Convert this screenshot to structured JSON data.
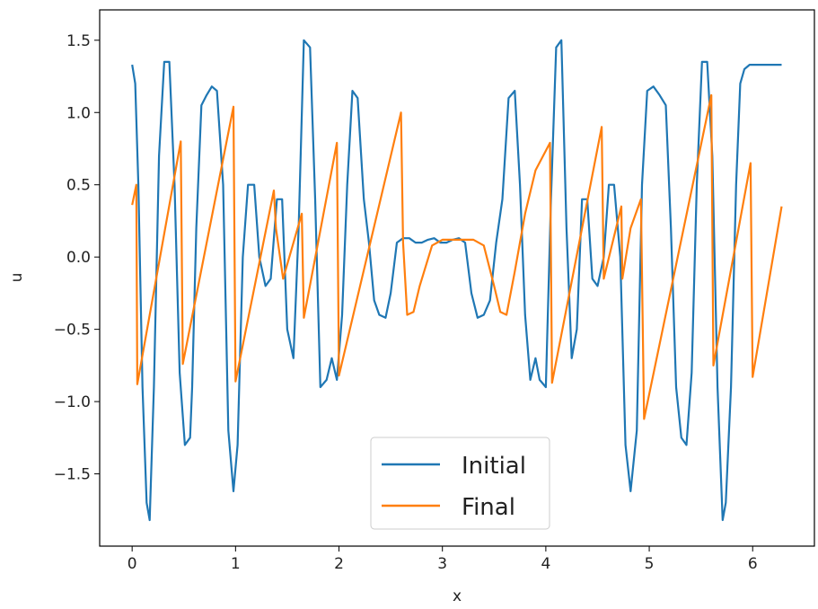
{
  "chart_data": {
    "type": "line",
    "title": "",
    "xlabel": "x",
    "ylabel": "u",
    "xlim": [
      -0.314,
      6.597
    ],
    "ylim": [
      -2.0,
      1.71
    ],
    "xticks": [
      0,
      1,
      2,
      3,
      4,
      5,
      6
    ],
    "xtick_labels": [
      "0",
      "1",
      "2",
      "3",
      "4",
      "5",
      "6"
    ],
    "yticks": [
      -1.5,
      -1.0,
      -0.5,
      0.0,
      0.5,
      1.0,
      1.5
    ],
    "ytick_labels": [
      "−1.5",
      "−1.0",
      "−0.5",
      "0.0",
      "0.5",
      "1.0",
      "1.5"
    ],
    "grid": false,
    "legend_position": "bottom-center",
    "series": [
      {
        "name": "Initial",
        "color": "#1f77b4",
        "x": [
          0,
          0.03,
          0.06,
          0.1,
          0.14,
          0.17,
          0.21,
          0.26,
          0.31,
          0.36,
          0.41,
          0.46,
          0.51,
          0.56,
          0.58,
          0.62,
          0.67,
          0.72,
          0.77,
          0.82,
          0.88,
          0.93,
          0.98,
          1.02,
          1.07,
          1.12,
          1.18,
          1.23,
          1.29,
          1.34,
          1.4,
          1.45,
          1.5,
          1.56,
          1.61,
          1.66,
          1.72,
          1.77,
          1.82,
          1.88,
          1.93,
          1.98,
          2.03,
          2.08,
          2.13,
          2.18,
          2.24,
          2.29,
          2.34,
          2.39,
          2.45,
          2.5,
          2.56,
          2.62,
          2.68,
          2.74,
          2.8,
          2.86,
          2.92,
          2.98,
          3.04,
          3.1,
          3.16,
          3.22,
          3.28,
          3.34,
          3.4,
          3.46,
          3.52,
          3.58,
          3.64,
          3.7,
          3.75,
          3.8,
          3.85,
          3.9,
          3.94,
          4.0,
          4.05,
          4.1,
          4.15,
          4.2,
          4.25,
          4.3,
          4.35,
          4.4,
          4.45,
          4.5,
          4.56,
          4.61,
          4.66,
          4.72,
          4.77,
          4.82,
          4.88,
          4.93,
          4.98,
          5.04,
          5.1,
          5.16,
          5.21,
          5.26,
          5.31,
          5.36,
          5.41,
          5.46,
          5.51,
          5.56,
          5.61,
          5.66,
          5.71,
          5.74,
          5.79,
          5.84,
          5.88,
          5.92,
          5.97,
          6.02,
          6.06,
          6.1,
          6.14,
          6.18,
          6.22,
          6.25,
          6.28
        ],
        "y": [
          1.33,
          1.2,
          0.5,
          -0.9,
          -1.7,
          -1.82,
          -0.9,
          0.7,
          1.35,
          1.35,
          0.5,
          -0.8,
          -1.3,
          -1.25,
          -0.9,
          0.2,
          1.05,
          1.12,
          1.18,
          1.15,
          0.5,
          -1.2,
          -1.62,
          -1.3,
          0.0,
          0.5,
          0.5,
          0.0,
          -0.2,
          -0.15,
          0.4,
          0.4,
          -0.5,
          -0.7,
          0.2,
          1.5,
          1.45,
          0.4,
          -0.9,
          -0.85,
          -0.7,
          -0.85,
          -0.4,
          0.5,
          1.15,
          1.1,
          0.4,
          0.1,
          -0.3,
          -0.4,
          -0.42,
          -0.25,
          0.1,
          0.13,
          0.13,
          0.1,
          0.1,
          0.12,
          0.13,
          0.1,
          0.1,
          0.12,
          0.13,
          0.1,
          -0.25,
          -0.42,
          -0.4,
          -0.3,
          0.1,
          0.4,
          1.1,
          1.15,
          0.5,
          -0.4,
          -0.85,
          -0.7,
          -0.85,
          -0.9,
          0.4,
          1.45,
          1.5,
          0.2,
          -0.7,
          -0.5,
          0.4,
          0.4,
          -0.15,
          -0.2,
          0.0,
          0.5,
          0.5,
          0.0,
          -1.3,
          -1.62,
          -1.2,
          0.5,
          1.15,
          1.18,
          1.12,
          1.05,
          0.2,
          -0.9,
          -1.25,
          -1.3,
          -0.8,
          0.5,
          1.35,
          1.35,
          0.7,
          -0.9,
          -1.82,
          -1.7,
          -0.9,
          0.5,
          1.2,
          1.3,
          1.33,
          1.33,
          1.33,
          1.33,
          1.33,
          1.33,
          1.33,
          1.33,
          1.33
        ]
      },
      {
        "name": "Final",
        "color": "#ff7f0e",
        "x": [
          0,
          0.04,
          0.05,
          0.07,
          0.47,
          0.49,
          0.98,
          1.0,
          1.37,
          1.39,
          1.46,
          1.64,
          1.66,
          1.98,
          2.0,
          2.6,
          2.62,
          2.66,
          2.72,
          2.78,
          2.9,
          3.0,
          3.1,
          3.2,
          3.3,
          3.4,
          3.5,
          3.56,
          3.62,
          3.7,
          3.8,
          3.9,
          4.04,
          4.06,
          4.54,
          4.56,
          4.73,
          4.74,
          4.82,
          4.92,
          4.95,
          5.6,
          5.62,
          5.98,
          6.0,
          6.28
        ],
        "y": [
          0.36,
          0.5,
          -0.88,
          -0.8,
          0.8,
          -0.74,
          1.04,
          -0.86,
          0.46,
          0.2,
          -0.15,
          0.3,
          -0.42,
          0.79,
          -0.82,
          1.0,
          0.1,
          -0.4,
          -0.38,
          -0.2,
          0.08,
          0.12,
          0.12,
          0.12,
          0.12,
          0.08,
          -0.2,
          -0.38,
          -0.4,
          -0.1,
          0.3,
          0.6,
          0.79,
          -0.87,
          0.9,
          -0.15,
          0.35,
          -0.15,
          0.2,
          0.4,
          -1.12,
          1.12,
          -0.75,
          0.65,
          -0.83,
          0.35
        ]
      }
    ]
  }
}
